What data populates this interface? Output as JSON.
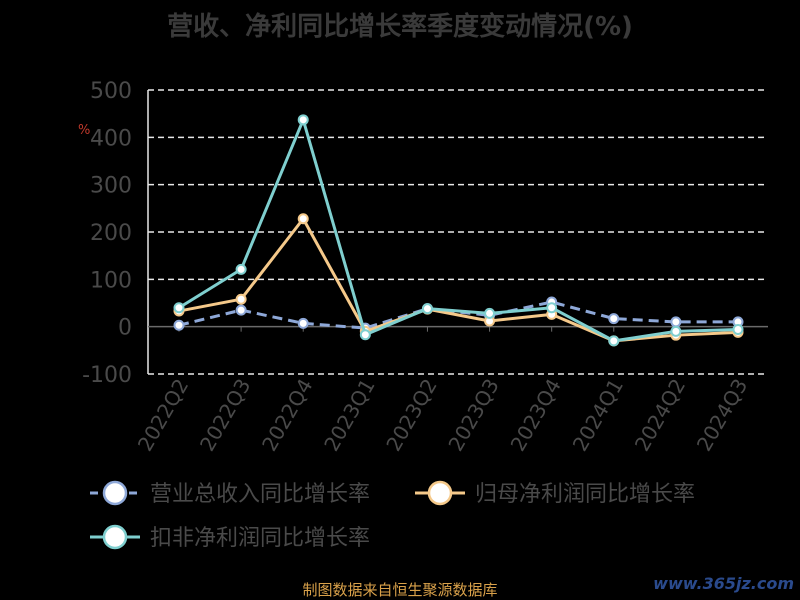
{
  "title": "营收、净利同比增长率季度变动情况(%)",
  "source": "制图数据来自恒生聚源数据库",
  "watermark": "www.365jz.com",
  "pct_mark": "%",
  "chart_data": {
    "type": "line",
    "title": "营收、净利同比增长率季度变动情况(%)",
    "categories": [
      "2022Q2",
      "2022Q3",
      "2022Q4",
      "2023Q1",
      "2023Q2",
      "2023Q3",
      "2023Q4",
      "2024Q1",
      "2024Q2",
      "2024Q3"
    ],
    "ylim": [
      -100,
      500
    ],
    "yticks": [
      -100,
      0,
      100,
      200,
      300,
      400,
      500
    ],
    "grid": true,
    "legend_position": "bottom",
    "series": [
      {
        "name": "营业总收入同比增长率",
        "color": "#8ea8d8",
        "dashed": true,
        "values": [
          3,
          35,
          7,
          -3,
          38,
          24,
          52,
          17,
          10,
          10
        ]
      },
      {
        "name": "归母净利润同比增长率",
        "color": "#f5c98a",
        "dashed": false,
        "values": [
          33,
          58,
          228,
          -10,
          37,
          12,
          26,
          -30,
          -18,
          -12
        ]
      },
      {
        "name": "扣非净利润同比增长率",
        "color": "#7fcfcf",
        "dashed": false,
        "values": [
          40,
          121,
          437,
          -17,
          38,
          28,
          40,
          -30,
          -10,
          -6
        ]
      }
    ]
  }
}
